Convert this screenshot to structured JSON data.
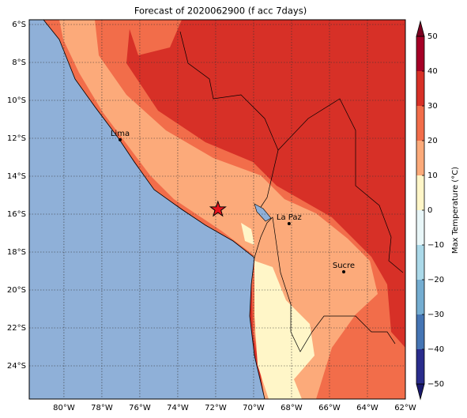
{
  "chart_data": {
    "type": "map",
    "title": "Forecast of 2020062900 (f acc 7days)",
    "lonlim": [
      -81.83,
      -62
    ],
    "latlim": [
      -25.75,
      -5.75
    ],
    "xticks": [
      {
        "value": -80,
        "label": "80°W"
      },
      {
        "value": -78,
        "label": "78°W"
      },
      {
        "value": -76,
        "label": "76°W"
      },
      {
        "value": -74,
        "label": "74°W"
      },
      {
        "value": -72,
        "label": "72°W"
      },
      {
        "value": -70,
        "label": "70°W"
      },
      {
        "value": -68,
        "label": "68°W"
      },
      {
        "value": -66,
        "label": "66°W"
      },
      {
        "value": -64,
        "label": "64°W"
      },
      {
        "value": -62,
        "label": "62°W"
      }
    ],
    "yticks": [
      {
        "value": -6,
        "label": "6°S"
      },
      {
        "value": -8,
        "label": "8°S"
      },
      {
        "value": -10,
        "label": "10°S"
      },
      {
        "value": -12,
        "label": "12°S"
      },
      {
        "value": -14,
        "label": "14°S"
      },
      {
        "value": -16,
        "label": "16°S"
      },
      {
        "value": -18,
        "label": "18°S"
      },
      {
        "value": -20,
        "label": "20°S"
      },
      {
        "value": -22,
        "label": "22°S"
      },
      {
        "value": -24,
        "label": "24°S"
      }
    ],
    "grid": true,
    "cities": [
      {
        "name": "Lima",
        "lon": -77.04,
        "lat": -12.08
      },
      {
        "name": "La Paz",
        "lon": -68.13,
        "lat": -16.5
      },
      {
        "name": "Sucre",
        "lon": -65.25,
        "lat": -19.04
      }
    ],
    "marker": {
      "lon": -71.88,
      "lat": -15.75,
      "color": "#e8141e"
    },
    "colorbar": {
      "label": "Max Temperature (°C)",
      "ticks": [
        {
          "value": -50,
          "label": "−50"
        },
        {
          "value": -40,
          "label": "−40"
        },
        {
          "value": -30,
          "label": "−30"
        },
        {
          "value": -20,
          "label": "−20"
        },
        {
          "value": -10,
          "label": "−10"
        },
        0,
        10,
        20,
        30,
        40,
        50
      ],
      "colors": [
        "#2a2c8c",
        "#4575b4",
        "#74add1",
        "#abd9e9",
        "#e8f6f8",
        "#fff6c8",
        "#fcaa7a",
        "#f26d4a",
        "#d73027",
        "#a50026"
      ],
      "under_color": "#1a1a6e",
      "over_color": "#7a0020"
    }
  }
}
